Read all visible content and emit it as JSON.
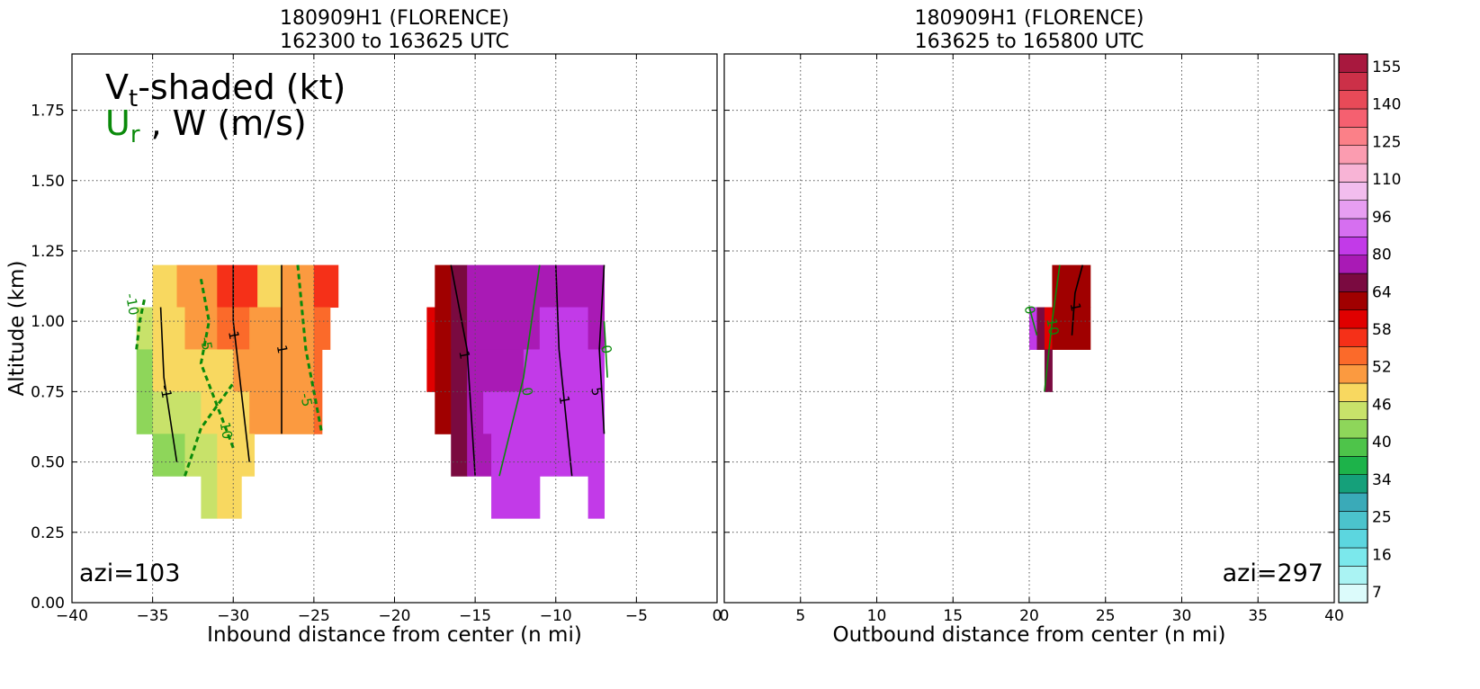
{
  "chart_data": [
    {
      "type": "contour",
      "title": [
        "180909H1 (FLORENCE)",
        "162300 to 163625 UTC"
      ],
      "xlabel": "Inbound distance from center (n mi)",
      "ylabel": "Altitude (km)",
      "legend": {
        "line1": [
          "V",
          "t",
          "-shaded (kt)"
        ],
        "line2": [
          "U",
          "r",
          " , W (m/s)"
        ],
        "line2_color": "green"
      },
      "annotation": "azi=103",
      "annotation_corner": "lower left",
      "xlim": [
        -40,
        0
      ],
      "xticks": [
        {
          "value": -40,
          "label": "−40"
        },
        {
          "value": -35,
          "label": "−35"
        },
        {
          "value": -30,
          "label": "−30"
        },
        {
          "value": -25,
          "label": "−25"
        },
        {
          "value": -20,
          "label": "−20"
        },
        {
          "value": -15,
          "label": "−15"
        },
        {
          "value": -10,
          "label": "−10"
        },
        {
          "value": -5,
          "label": "−5"
        },
        0
      ],
      "ylim": [
        0,
        1.95
      ],
      "yticks": [
        {
          "value": 0,
          "label": "0.00"
        },
        {
          "value": 0.25,
          "label": "0.25"
        },
        {
          "value": 0.5,
          "label": "0.50"
        },
        {
          "value": 0.75,
          "label": "0.75"
        },
        {
          "value": 1,
          "label": "1.00"
        },
        {
          "value": 1.25,
          "label": "1.25"
        },
        {
          "value": 1.5,
          "label": "1.50"
        },
        {
          "value": 1.75,
          "label": "1.75"
        }
      ],
      "grid": true,
      "cells": [
        [
          -35,
          -33.5,
          1.05,
          1.2,
          48
        ],
        [
          -33.5,
          -31,
          1.05,
          1.2,
          50
        ],
        [
          -31,
          -28.5,
          1.05,
          1.2,
          56
        ],
        [
          -28.5,
          -27,
          1.05,
          1.2,
          47
        ],
        [
          -27,
          -25,
          1.05,
          1.2,
          51
        ],
        [
          -25,
          -23.5,
          1.05,
          1.2,
          56
        ],
        [
          -36,
          -35,
          0.9,
          1.05,
          44
        ],
        [
          -35,
          -33,
          0.9,
          1.05,
          47
        ],
        [
          -33,
          -31,
          0.9,
          1.05,
          50
        ],
        [
          -31,
          -29,
          0.9,
          1.05,
          54
        ],
        [
          -29,
          -25,
          0.9,
          1.05,
          51
        ],
        [
          -25,
          -24,
          0.9,
          1.05,
          53
        ],
        [
          -36,
          -35,
          0.75,
          0.9,
          42
        ],
        [
          -35,
          -33,
          0.75,
          0.9,
          47
        ],
        [
          -33,
          -30,
          0.75,
          0.9,
          49
        ],
        [
          -30,
          -25,
          0.75,
          0.9,
          51
        ],
        [
          -25,
          -24.5,
          0.75,
          0.9,
          53
        ],
        [
          -36,
          -35,
          0.6,
          0.75,
          42
        ],
        [
          -35,
          -32,
          0.6,
          0.75,
          46
        ],
        [
          -32,
          -29,
          0.6,
          0.75,
          49
        ],
        [
          -29,
          -25,
          0.6,
          0.75,
          51
        ],
        [
          -25,
          -24.5,
          0.6,
          0.75,
          53
        ],
        [
          -35,
          -33,
          0.45,
          0.6,
          41
        ],
        [
          -33,
          -31,
          0.45,
          0.6,
          45
        ],
        [
          -31,
          -29.5,
          0.45,
          0.6,
          49
        ],
        [
          -29.5,
          -28.7,
          0.45,
          0.6,
          47
        ],
        [
          -32,
          -31,
          0.3,
          0.45,
          44
        ],
        [
          -31,
          -29.5,
          0.3,
          0.45,
          48
        ],
        [
          -17.5,
          -16.5,
          1.05,
          1.2,
          62
        ],
        [
          -16.5,
          -15.5,
          1.05,
          1.2,
          66
        ],
        [
          -15.5,
          -7,
          1.05,
          1.2,
          72
        ],
        [
          -18,
          -17.5,
          0.9,
          1.05,
          60
        ],
        [
          -17.5,
          -16.5,
          0.9,
          1.05,
          62
        ],
        [
          -16.5,
          -15.5,
          0.9,
          1.05,
          66
        ],
        [
          -15.5,
          -11,
          0.9,
          1.05,
          72
        ],
        [
          -11,
          -8,
          0.9,
          1.05,
          82
        ],
        [
          -8,
          -7,
          0.9,
          1.05,
          72
        ],
        [
          -18,
          -17.5,
          0.75,
          0.9,
          60
        ],
        [
          -17.5,
          -16.5,
          0.75,
          0.9,
          62
        ],
        [
          -16.5,
          -15.5,
          0.75,
          0.9,
          66
        ],
        [
          -15.5,
          -12,
          0.75,
          0.9,
          72
        ],
        [
          -12,
          -7,
          0.75,
          0.9,
          82
        ],
        [
          -17.5,
          -16.5,
          0.6,
          0.75,
          62
        ],
        [
          -16.5,
          -15.5,
          0.6,
          0.75,
          66
        ],
        [
          -15.5,
          -14.5,
          0.6,
          0.75,
          72
        ],
        [
          -14.5,
          -7,
          0.6,
          0.75,
          82
        ],
        [
          -16.5,
          -15.5,
          0.45,
          0.6,
          66
        ],
        [
          -15.5,
          -14,
          0.45,
          0.6,
          72
        ],
        [
          -14,
          -7,
          0.45,
          0.6,
          82
        ],
        [
          -14,
          -11,
          0.3,
          0.45,
          82
        ],
        [
          -8,
          -7,
          0.3,
          0.45,
          82
        ]
      ],
      "contours": [
        {
          "level": -10,
          "color": "green",
          "dashed": true,
          "points": [
            [
              -36,
              0.9
            ],
            [
              -35.8,
              1.0
            ],
            [
              -35.5,
              1.08
            ]
          ],
          "label_at": [
            -36.3,
            1.06
          ]
        },
        {
          "level": -5,
          "color": "green",
          "dashed": true,
          "points": [
            [
              -32,
              1.15
            ],
            [
              -31.5,
              1.0
            ],
            [
              -32,
              0.85
            ],
            [
              -31,
              0.7
            ],
            [
              -30,
              0.55
            ]
          ],
          "label_at": [
            -31.7,
            0.92
          ]
        },
        {
          "level": -10,
          "color": "green",
          "dashed": true,
          "points": [
            [
              -33,
              0.45
            ],
            [
              -32,
              0.62
            ],
            [
              -31,
              0.7
            ],
            [
              -30,
              0.78
            ]
          ],
          "label_at": [
            -30.5,
            0.62
          ]
        },
        {
          "level": 1,
          "color": "black",
          "dashed": false,
          "points": [
            [
              -30,
              1.2
            ],
            [
              -30,
              1.0
            ],
            [
              -29.5,
              0.75
            ],
            [
              -29,
              0.5
            ]
          ],
          "label_at": [
            -30,
            0.95
          ]
        },
        {
          "level": 1,
          "color": "black",
          "dashed": false,
          "points": [
            [
              -27,
              1.2
            ],
            [
              -27,
              0.9
            ],
            [
              -27,
              0.6
            ]
          ],
          "label_at": [
            -27,
            0.9
          ]
        },
        {
          "level": -1,
          "color": "black",
          "dashed": false,
          "points": [
            [
              -34.5,
              1.05
            ],
            [
              -34.3,
              0.8
            ],
            [
              -33.5,
              0.5
            ]
          ],
          "label_at": [
            -34.2,
            0.75
          ]
        },
        {
          "level": -5,
          "color": "green",
          "dashed": true,
          "points": [
            [
              -26,
              1.2
            ],
            [
              -25.5,
              0.9
            ],
            [
              -24.5,
              0.6
            ]
          ],
          "label_at": [
            -25.5,
            0.72
          ]
        },
        {
          "level": 1,
          "color": "black",
          "dashed": false,
          "points": [
            [
              -16.5,
              1.2
            ],
            [
              -15.5,
              0.9
            ],
            [
              -15,
              0.45
            ]
          ],
          "label_at": [
            -15.7,
            0.88
          ]
        },
        {
          "level": 0,
          "color": "green",
          "dashed": false,
          "points": [
            [
              -11,
              1.2
            ],
            [
              -12,
              0.8
            ],
            [
              -13.5,
              0.45
            ]
          ],
          "label_at": [
            -11.8,
            0.75
          ]
        },
        {
          "level": 1,
          "color": "black",
          "dashed": false,
          "points": [
            [
              -10,
              1.2
            ],
            [
              -9.8,
              0.9
            ],
            [
              -9,
              0.45
            ]
          ],
          "label_at": [
            -9.5,
            0.72
          ]
        },
        {
          "level": 5,
          "color": "black",
          "dashed": false,
          "points": [
            [
              -7,
              1.2
            ],
            [
              -7.3,
              0.9
            ],
            [
              -7,
              0.6
            ]
          ],
          "label_at": [
            -7.5,
            0.75
          ]
        },
        {
          "level": 0,
          "color": "green",
          "dashed": false,
          "points": [
            [
              -7,
              1.0
            ],
            [
              -6.8,
              0.8
            ]
          ],
          "label_at": [
            -6.9,
            0.9
          ]
        }
      ]
    },
    {
      "type": "contour",
      "title": [
        "180909H1 (FLORENCE)",
        "163625 to 165800 UTC"
      ],
      "xlabel": "Outbound distance from center (n mi)",
      "annotation": "azi=297",
      "annotation_corner": "lower right",
      "xlim": [
        0,
        40
      ],
      "xticks": [
        0,
        5,
        10,
        15,
        20,
        25,
        30,
        35,
        40
      ],
      "ylim": [
        0,
        1.95
      ],
      "grid": true,
      "cells": [
        [
          21.5,
          24,
          1.05,
          1.2,
          62
        ],
        [
          20,
          20.5,
          0.9,
          1.05,
          82
        ],
        [
          20.5,
          21,
          0.9,
          1.05,
          66
        ],
        [
          21,
          21.5,
          0.9,
          1.05,
          60
        ],
        [
          21.5,
          24,
          0.9,
          1.05,
          62
        ],
        [
          21,
          21.5,
          0.75,
          0.9,
          66
        ]
      ],
      "contours": [
        {
          "level": 10,
          "color": "green",
          "dashed": false,
          "points": [
            [
              22,
              1.2
            ],
            [
              21.5,
              1.0
            ],
            [
              21,
              0.75
            ]
          ],
          "label_at": [
            21.5,
            0.98
          ]
        },
        {
          "level": 1,
          "color": "black",
          "dashed": false,
          "points": [
            [
              23.5,
              1.2
            ],
            [
              23,
              1.1
            ],
            [
              22.8,
              0.95
            ]
          ],
          "label_at": [
            23,
            1.05
          ]
        },
        {
          "level": 0,
          "color": "green",
          "dashed": false,
          "points": [
            [
              20,
              1.05
            ],
            [
              20.5,
              0.95
            ]
          ],
          "label_at": [
            20,
            1.04
          ]
        }
      ],
      "colorbar": {
        "ticks": [
          7,
          16,
          25,
          34,
          40,
          46,
          52,
          58,
          64,
          80,
          96,
          110,
          125,
          140,
          155
        ],
        "colors": [
          "#dcfbfb",
          "#aaf3f3",
          "#7be8ec",
          "#5cd6df",
          "#4bc3cc",
          "#3aaab8",
          "#15a07a",
          "#1db34a",
          "#4ec44a",
          "#8ed65a",
          "#c8e26a",
          "#f8d860",
          "#fb9a40",
          "#fb6a2a",
          "#f53018",
          "#e00000",
          "#a00000",
          "#7a0a40",
          "#a91ab5",
          "#c23ae8",
          "#d66ff0",
          "#e79ef2",
          "#f2bdee",
          "#f8b4d6",
          "#fb9cb0",
          "#fb8088",
          "#f56070",
          "#e84a58",
          "#cc3048",
          "#a8183e"
        ]
      }
    }
  ]
}
